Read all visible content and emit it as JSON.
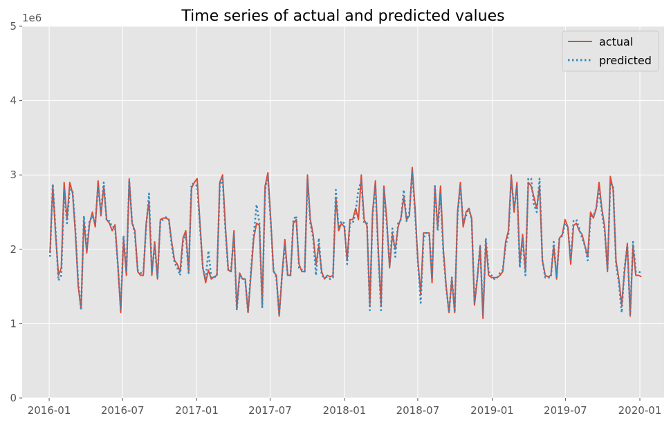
{
  "chart_data": {
    "type": "line",
    "title": "Time series of actual and predicted values",
    "xlabel": "",
    "ylabel": "",
    "y_offset_label": "1e6",
    "x_start": "2016-01-03",
    "x_step": "weekly",
    "xlim": [
      2015.817,
      2020.164
    ],
    "ylim": [
      0,
      5
    ],
    "x_ticks": [
      {
        "label": "2016-01",
        "value": 2016.0
      },
      {
        "label": "2016-07",
        "value": 2016.497
      },
      {
        "label": "2017-01",
        "value": 2017.0
      },
      {
        "label": "2017-07",
        "value": 2017.496
      },
      {
        "label": "2018-01",
        "value": 2018.0
      },
      {
        "label": "2018-07",
        "value": 2018.496
      },
      {
        "label": "2019-01",
        "value": 2019.0
      },
      {
        "label": "2019-07",
        "value": 2019.496
      },
      {
        "label": "2020-01",
        "value": 2020.0
      }
    ],
    "y_ticks": [
      {
        "label": "0",
        "value": 0
      },
      {
        "label": "1",
        "value": 1
      },
      {
        "label": "2",
        "value": 2
      },
      {
        "label": "3",
        "value": 3
      },
      {
        "label": "4",
        "value": 4
      },
      {
        "label": "5",
        "value": 5
      }
    ],
    "grid": true,
    "legend_position": "top-right",
    "series": [
      {
        "name": "actual",
        "color": "#E24A33",
        "style": "solid",
        "values": [
          1.95,
          2.85,
          2.2,
          1.65,
          1.75,
          2.9,
          2.4,
          2.9,
          2.75,
          2.2,
          1.5,
          1.2,
          2.4,
          1.95,
          2.35,
          2.5,
          2.3,
          2.92,
          2.45,
          2.85,
          2.4,
          2.35,
          2.25,
          2.33,
          1.8,
          1.15,
          2.15,
          1.65,
          2.95,
          2.35,
          2.25,
          1.7,
          1.65,
          1.65,
          2.35,
          2.65,
          1.65,
          2.1,
          1.6,
          2.4,
          2.42,
          2.42,
          2.4,
          2.1,
          1.85,
          1.8,
          1.7,
          2.15,
          2.25,
          1.7,
          2.82,
          2.9,
          2.95,
          2.35,
          1.75,
          1.55,
          1.72,
          1.6,
          1.63,
          1.65,
          2.9,
          3.0,
          2.3,
          1.72,
          1.7,
          2.25,
          1.2,
          1.68,
          1.6,
          1.6,
          1.15,
          1.65,
          2.15,
          2.35,
          2.32,
          1.25,
          2.85,
          3.03,
          2.4,
          1.7,
          1.65,
          1.1,
          1.65,
          2.13,
          1.65,
          1.65,
          2.35,
          2.4,
          1.8,
          1.7,
          1.7,
          3.0,
          2.4,
          2.2,
          1.8,
          2.05,
          1.7,
          1.6,
          1.65,
          1.63,
          1.65,
          2.7,
          2.25,
          2.35,
          2.3,
          1.85,
          2.4,
          2.4,
          2.55,
          2.4,
          3.0,
          2.4,
          2.32,
          1.25,
          2.5,
          2.92,
          2.0,
          1.25,
          2.85,
          2.4,
          1.75,
          2.2,
          2.0,
          2.3,
          2.42,
          2.7,
          2.4,
          2.45,
          3.1,
          2.55,
          1.85,
          1.4,
          2.22,
          2.22,
          2.22,
          1.55,
          2.85,
          2.3,
          2.85,
          2.0,
          1.5,
          1.15,
          1.6,
          1.15,
          2.5,
          2.9,
          2.3,
          2.5,
          2.55,
          2.42,
          1.25,
          1.6,
          2.05,
          1.07,
          2.1,
          1.65,
          1.62,
          1.62,
          1.62,
          1.65,
          1.7,
          2.1,
          2.25,
          3.0,
          2.5,
          2.9,
          1.8,
          2.2,
          1.7,
          2.9,
          2.85,
          2.7,
          2.55,
          2.85,
          1.85,
          1.65,
          1.63,
          1.65,
          2.05,
          1.6,
          2.15,
          2.2,
          2.4,
          2.3,
          1.8,
          2.32,
          2.35,
          2.25,
          2.2,
          2.05,
          1.9,
          2.5,
          2.42,
          2.55,
          2.9,
          2.55,
          2.3,
          1.7,
          2.98,
          2.8,
          1.85,
          1.6,
          1.25,
          1.7,
          2.08,
          1.1,
          2.05,
          1.65,
          1.65,
          1.63
        ]
      },
      {
        "name": "predicted",
        "color": "#348ABD",
        "style": "dotted",
        "values": [
          1.9,
          2.88,
          2.25,
          1.58,
          1.65,
          2.8,
          2.35,
          2.8,
          2.78,
          2.25,
          1.55,
          1.18,
          2.45,
          2.0,
          2.38,
          2.45,
          2.35,
          2.85,
          2.5,
          2.9,
          2.38,
          2.38,
          2.3,
          2.3,
          1.78,
          1.2,
          2.18,
          1.7,
          2.92,
          2.38,
          2.2,
          1.72,
          1.68,
          1.68,
          2.3,
          2.75,
          1.7,
          2.05,
          1.62,
          2.38,
          2.4,
          2.43,
          2.4,
          2.05,
          1.82,
          1.75,
          1.65,
          2.1,
          2.2,
          1.68,
          2.88,
          2.88,
          2.85,
          2.3,
          1.75,
          1.6,
          1.98,
          1.62,
          1.62,
          1.65,
          2.85,
          2.95,
          2.25,
          1.7,
          1.72,
          2.2,
          1.18,
          1.65,
          1.62,
          1.58,
          1.15,
          1.7,
          2.2,
          2.6,
          2.35,
          1.22,
          2.8,
          2.98,
          2.35,
          1.72,
          1.62,
          1.12,
          1.65,
          2.05,
          1.65,
          1.65,
          2.4,
          2.45,
          1.75,
          1.72,
          1.7,
          2.95,
          2.35,
          2.15,
          1.65,
          2.15,
          1.65,
          1.62,
          1.63,
          1.6,
          1.62,
          2.8,
          2.28,
          2.38,
          2.35,
          1.8,
          2.35,
          2.35,
          2.5,
          2.8,
          2.92,
          2.35,
          2.35,
          1.18,
          2.45,
          2.85,
          1.95,
          1.18,
          2.82,
          2.35,
          1.78,
          2.28,
          1.9,
          2.35,
          2.4,
          2.8,
          2.38,
          2.5,
          3.05,
          2.5,
          1.82,
          1.28,
          2.15,
          2.22,
          2.2,
          1.6,
          2.85,
          2.25,
          2.75,
          1.95,
          1.48,
          1.15,
          1.62,
          1.15,
          2.45,
          2.85,
          2.35,
          2.45,
          2.55,
          2.4,
          1.28,
          1.62,
          2.05,
          1.12,
          2.15,
          1.7,
          1.65,
          1.6,
          1.62,
          1.68,
          1.72,
          2.05,
          2.2,
          2.95,
          2.55,
          2.85,
          1.75,
          2.15,
          1.65,
          2.95,
          2.95,
          2.6,
          2.5,
          2.95,
          1.85,
          1.62,
          1.62,
          1.62,
          2.1,
          1.62,
          2.15,
          2.18,
          2.35,
          2.3,
          1.85,
          2.38,
          2.4,
          2.28,
          2.15,
          2.05,
          1.85,
          2.45,
          2.45,
          2.55,
          2.8,
          2.5,
          2.25,
          1.72,
          2.9,
          2.85,
          1.8,
          1.55,
          1.15,
          1.75,
          2.05,
          1.12,
          2.1,
          1.7,
          1.7,
          1.68
        ]
      }
    ]
  }
}
